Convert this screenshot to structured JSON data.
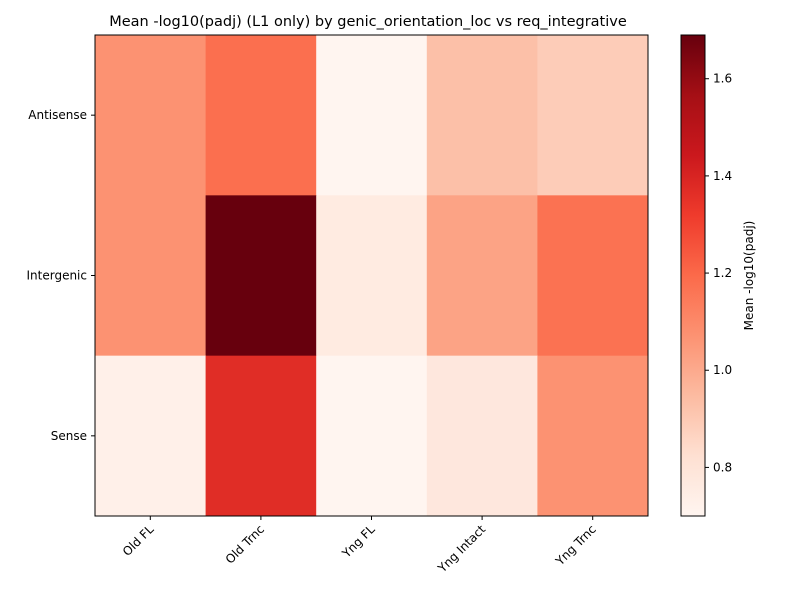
{
  "chart_data": {
    "type": "heatmap",
    "title": "Mean -log10(padj) (L1 only) by genic_orientation_loc vs req_integrative",
    "x_categories": [
      "Old FL",
      "Old Trnc",
      "Yng FL",
      "Yng Intact",
      "Yng Trnc"
    ],
    "y_categories": [
      "Antisense",
      "Intergenic",
      "Sense"
    ],
    "values": [
      [
        1.07,
        1.18,
        0.7,
        0.93,
        0.89
      ],
      [
        1.07,
        1.69,
        0.76,
        1.02,
        1.17
      ],
      [
        0.73,
        1.37,
        0.7,
        0.78,
        1.07
      ]
    ],
    "colorbar": {
      "label": "Mean -log10(padj)",
      "vmin": 0.7,
      "vmax": 1.69,
      "ticks": [
        "0.8",
        "1.0",
        "1.2",
        "1.4",
        "1.6"
      ],
      "tick_values": [
        0.8,
        1.0,
        1.2,
        1.4,
        1.6
      ]
    },
    "colormap": "Reds",
    "grid": false
  }
}
